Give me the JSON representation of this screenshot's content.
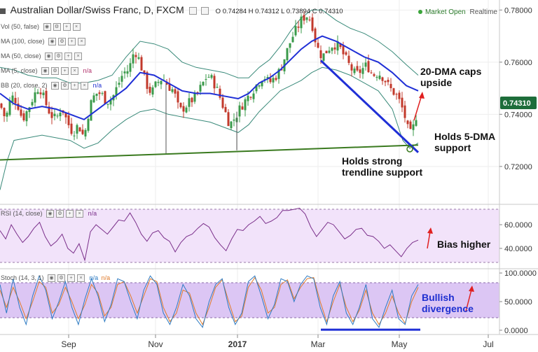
{
  "header": {
    "title": "Australian Dollar/Swiss Franc, D, FXCM",
    "ohlc": "O 0.74284 H 0.74312 L 0.73894 C 0.74310",
    "market_status": "Market Open",
    "mode": "Realtime"
  },
  "indicators": {
    "vol": "Vol (50, false)",
    "ma100": "MA (100, close)",
    "ma50": "MA (50, close)",
    "ma5": "MA (5, close)",
    "bb": "BB (20, close, 2)",
    "ma5_value": "n/a",
    "bb_value": "n/a",
    "rsi": "RSI (14, close)",
    "rsi_value": "n/a",
    "stoch": "Stoch (14, 3, 1)",
    "stoch_value_1": "n/a",
    "stoch_value_2": "n/a"
  },
  "annotations": {
    "dma20": "20-DMA caps upside",
    "dma20_line1": "20-DMA caps",
    "dma20_line2": "upside",
    "dma5_line1": "Holds 5-DMA",
    "dma5_line2": "support",
    "trend_line1": "Holds strong",
    "trend_line2": "trendline support",
    "bias": "Bias higher",
    "div_line1": "Bullish",
    "div_line2": "divergence"
  },
  "colors": {
    "up": "#3a9a4a",
    "down": "#c2392b",
    "ma20": "#1f2fd6",
    "bb": "#3a8a7a",
    "green_trend": "#3a7a1f",
    "blue_trend": "#1f2fd6",
    "rsi": "#7a2f8a",
    "rsi_band": "#f2e3fa",
    "stoch_band": "#dcc6f4",
    "stoch_k": "#2c7ac2",
    "stoch_d": "#e07a2a",
    "price_tag": "#1d6d3a",
    "arrow": "#e02020"
  },
  "chart_data": [
    {
      "type": "candlestick",
      "title": "Australian Dollar/Swiss Franc, D, FXCM",
      "x_ticks": [
        "Sep",
        "Nov",
        "2017",
        "Mar",
        "May",
        "Jul"
      ],
      "y_ticks": [
        "0.78000",
        "0.76000",
        "0.74000",
        "0.72000"
      ],
      "ylim": [
        0.706,
        0.7825
      ],
      "last_price": "0.74310",
      "series": [
        {
          "name": "MA (5, close)"
        },
        {
          "name": "BB (20, close, 2)"
        }
      ],
      "price_path": [
        [
          0,
          0.744
        ],
        [
          8,
          0.738
        ],
        [
          16,
          0.747
        ],
        [
          24,
          0.745
        ],
        [
          32,
          0.738
        ],
        [
          40,
          0.742
        ],
        [
          48,
          0.747
        ],
        [
          56,
          0.751
        ],
        [
          64,
          0.745
        ],
        [
          72,
          0.74
        ],
        [
          80,
          0.738
        ],
        [
          88,
          0.743
        ],
        [
          96,
          0.737
        ],
        [
          104,
          0.733
        ],
        [
          112,
          0.736
        ],
        [
          120,
          0.731
        ],
        [
          128,
          0.743
        ],
        [
          136,
          0.748
        ],
        [
          144,
          0.748
        ],
        [
          152,
          0.745
        ],
        [
          160,
          0.746
        ],
        [
          168,
          0.751
        ],
        [
          176,
          0.756
        ],
        [
          184,
          0.757
        ],
        [
          192,
          0.765
        ],
        [
          200,
          0.76
        ],
        [
          208,
          0.752
        ],
        [
          216,
          0.748
        ],
        [
          224,
          0.752
        ],
        [
          232,
          0.754
        ],
        [
          240,
          0.751
        ],
        [
          248,
          0.749
        ],
        [
          256,
          0.741
        ],
        [
          264,
          0.743
        ],
        [
          272,
          0.745
        ],
        [
          280,
          0.747
        ],
        [
          288,
          0.751
        ],
        [
          296,
          0.755
        ],
        [
          304,
          0.753
        ],
        [
          312,
          0.748
        ],
        [
          320,
          0.742
        ],
        [
          328,
          0.736
        ],
        [
          336,
          0.739
        ],
        [
          344,
          0.743
        ],
        [
          352,
          0.746
        ],
        [
          360,
          0.749
        ],
        [
          368,
          0.752
        ],
        [
          376,
          0.755
        ],
        [
          384,
          0.752
        ],
        [
          392,
          0.754
        ],
        [
          400,
          0.757
        ],
        [
          408,
          0.763
        ],
        [
          416,
          0.769
        ],
        [
          424,
          0.773
        ],
        [
          432,
          0.777
        ],
        [
          440,
          0.778
        ],
        [
          446,
          0.774
        ],
        [
          452,
          0.766
        ],
        [
          460,
          0.762
        ],
        [
          468,
          0.765
        ],
        [
          476,
          0.767
        ],
        [
          484,
          0.766
        ],
        [
          492,
          0.762
        ],
        [
          500,
          0.758
        ],
        [
          508,
          0.755
        ],
        [
          516,
          0.757
        ],
        [
          524,
          0.759
        ],
        [
          532,
          0.755
        ],
        [
          540,
          0.756
        ],
        [
          548,
          0.754
        ],
        [
          556,
          0.75
        ],
        [
          564,
          0.748
        ],
        [
          572,
          0.744
        ],
        [
          578,
          0.739
        ],
        [
          584,
          0.732
        ],
        [
          588,
          0.733
        ],
        [
          592,
          0.737
        ],
        [
          597,
          0.743
        ]
      ],
      "ma20_path": [
        [
          0,
          0.748
        ],
        [
          20,
          0.744
        ],
        [
          40,
          0.742
        ],
        [
          60,
          0.743
        ],
        [
          80,
          0.742
        ],
        [
          100,
          0.74
        ],
        [
          120,
          0.738
        ],
        [
          140,
          0.742
        ],
        [
          160,
          0.746
        ],
        [
          180,
          0.75
        ],
        [
          200,
          0.756
        ],
        [
          220,
          0.755
        ],
        [
          240,
          0.752
        ],
        [
          260,
          0.749
        ],
        [
          280,
          0.748
        ],
        [
          300,
          0.748
        ],
        [
          320,
          0.747
        ],
        [
          340,
          0.746
        ],
        [
          355,
          0.748
        ],
        [
          370,
          0.752
        ],
        [
          385,
          0.754
        ],
        [
          400,
          0.757
        ],
        [
          415,
          0.761
        ],
        [
          430,
          0.765
        ],
        [
          445,
          0.768
        ],
        [
          460,
          0.77
        ],
        [
          480,
          0.768
        ],
        [
          500,
          0.765
        ],
        [
          520,
          0.762
        ],
        [
          540,
          0.76
        ],
        [
          560,
          0.756
        ],
        [
          580,
          0.751
        ],
        [
          597,
          0.749
        ]
      ],
      "bb_upper_path": [
        [
          0,
          0.758
        ],
        [
          20,
          0.757
        ],
        [
          40,
          0.755
        ],
        [
          60,
          0.754
        ],
        [
          80,
          0.754
        ],
        [
          100,
          0.752
        ],
        [
          120,
          0.752
        ],
        [
          140,
          0.753
        ],
        [
          160,
          0.755
        ],
        [
          180,
          0.762
        ],
        [
          200,
          0.768
        ],
        [
          220,
          0.767
        ],
        [
          240,
          0.765
        ],
        [
          260,
          0.76
        ],
        [
          280,
          0.758
        ],
        [
          300,
          0.757
        ],
        [
          320,
          0.756
        ],
        [
          340,
          0.754
        ],
        [
          355,
          0.754
        ],
        [
          370,
          0.758
        ],
        [
          385,
          0.761
        ],
        [
          400,
          0.766
        ],
        [
          415,
          0.772
        ],
        [
          430,
          0.777
        ],
        [
          445,
          0.78
        ],
        [
          460,
          0.78
        ],
        [
          480,
          0.776
        ],
        [
          500,
          0.773
        ],
        [
          520,
          0.771
        ],
        [
          540,
          0.768
        ],
        [
          560,
          0.764
        ],
        [
          580,
          0.759
        ],
        [
          597,
          0.755
        ]
      ],
      "bb_lower_path": [
        [
          0,
          0.711
        ],
        [
          10,
          0.722
        ],
        [
          20,
          0.73
        ],
        [
          40,
          0.731
        ],
        [
          60,
          0.732
        ],
        [
          80,
          0.731
        ],
        [
          100,
          0.73
        ],
        [
          120,
          0.727
        ],
        [
          140,
          0.729
        ],
        [
          160,
          0.734
        ],
        [
          180,
          0.738
        ],
        [
          200,
          0.741
        ],
        [
          220,
          0.742
        ],
        [
          240,
          0.74
        ],
        [
          260,
          0.739
        ],
        [
          280,
          0.738
        ],
        [
          300,
          0.737
        ],
        [
          320,
          0.735
        ],
        [
          340,
          0.733
        ],
        [
          355,
          0.736
        ],
        [
          370,
          0.741
        ],
        [
          385,
          0.745
        ],
        [
          400,
          0.749
        ],
        [
          415,
          0.751
        ],
        [
          430,
          0.753
        ],
        [
          445,
          0.756
        ],
        [
          460,
          0.758
        ],
        [
          480,
          0.757
        ],
        [
          500,
          0.755
        ],
        [
          520,
          0.752
        ],
        [
          540,
          0.749
        ],
        [
          560,
          0.742
        ],
        [
          575,
          0.73
        ],
        [
          585,
          0.727
        ],
        [
          597,
          0.729
        ]
      ],
      "green_trendline": [
        [
          0,
          0.7225
        ],
        [
          597,
          0.7282
        ]
      ],
      "blue_trendline": [
        [
          458,
          0.7606
        ],
        [
          597,
          0.7254
        ]
      ],
      "wick_spikes": [
        [
          237,
          0.7246,
          0.7518
        ],
        [
          338,
          0.7262,
          0.741
        ]
      ]
    },
    {
      "type": "line",
      "title": "RSI (14, close)",
      "y_ticks": [
        "60.0000",
        "40.0000"
      ],
      "ylim": [
        24,
        76
      ],
      "band": [
        30,
        70
      ],
      "series": [
        {
          "name": "RSI (14, close)",
          "values": [
            55,
            48,
            60,
            52,
            45,
            50,
            57,
            62,
            50,
            42,
            46,
            52,
            40,
            36,
            44,
            30,
            54,
            60,
            56,
            52,
            58,
            64,
            63,
            70,
            62,
            52,
            46,
            53,
            55,
            49,
            46,
            37,
            45,
            50,
            52,
            57,
            61,
            58,
            49,
            43,
            38,
            48,
            56,
            55,
            60,
            63,
            67,
            61,
            63,
            66,
            72,
            72,
            73,
            74,
            69,
            58,
            50,
            56,
            62,
            60,
            54,
            48,
            51,
            56,
            57,
            51,
            50,
            46,
            40,
            43,
            38,
            33,
            40,
            45,
            47
          ]
        }
      ]
    },
    {
      "type": "line",
      "title": "Stoch (14, 3, 1)",
      "y_ticks": [
        "100.0000",
        "50.0000",
        "0.0000"
      ],
      "ylim": [
        -5,
        105
      ],
      "band": [
        20,
        80
      ],
      "series": [
        {
          "name": "%K",
          "values": [
            80,
            30,
            90,
            40,
            10,
            60,
            95,
            70,
            20,
            50,
            85,
            40,
            10,
            55,
            90,
            60,
            15,
            45,
            90,
            85,
            50,
            20,
            70,
            95,
            80,
            30,
            10,
            40,
            80,
            60,
            20,
            5,
            50,
            80,
            90,
            40,
            10,
            30,
            85,
            95,
            60,
            20,
            45,
            90,
            85,
            50,
            80,
            95,
            90,
            40,
            10,
            60,
            85,
            30,
            10,
            40,
            80,
            20,
            5,
            40,
            70,
            20,
            10,
            60,
            80
          ]
        },
        {
          "name": "%D",
          "values": [
            70,
            40,
            75,
            50,
            20,
            50,
            85,
            75,
            30,
            45,
            75,
            50,
            20,
            45,
            80,
            65,
            25,
            40,
            80,
            85,
            60,
            30,
            60,
            90,
            85,
            40,
            15,
            30,
            70,
            65,
            30,
            10,
            40,
            75,
            88,
            50,
            15,
            25,
            75,
            92,
            70,
            30,
            40,
            80,
            88,
            55,
            75,
            90,
            92,
            50,
            15,
            50,
            80,
            40,
            15,
            35,
            70,
            30,
            10,
            30,
            60,
            30,
            12,
            50,
            75
          ]
        }
      ],
      "divergence_line": [
        [
          458,
          1
        ],
        [
          600,
          1
        ]
      ]
    }
  ]
}
